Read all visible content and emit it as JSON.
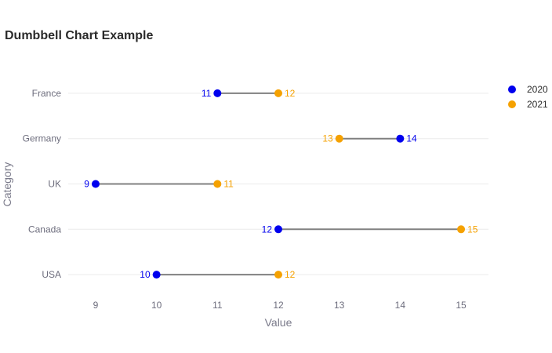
{
  "chart_data": {
    "type": "scatter",
    "subtype": "dumbbell",
    "title": "Dumbbell Chart Example",
    "xlabel": "Value",
    "ylabel": "Category",
    "categories": [
      "USA",
      "Canada",
      "UK",
      "Germany",
      "France"
    ],
    "x_ticks": [
      9,
      10,
      11,
      12,
      13,
      14,
      15
    ],
    "xlim": [
      8.55,
      15.45
    ],
    "grid": true,
    "legend_position": "top-right",
    "connector_color": "#808080",
    "series": [
      {
        "name": "2020",
        "color": "#0000ee",
        "values": [
          10,
          12,
          9,
          14,
          11
        ]
      },
      {
        "name": "2021",
        "color": "#f5a100",
        "values": [
          12,
          15,
          11,
          13,
          12
        ]
      }
    ]
  }
}
